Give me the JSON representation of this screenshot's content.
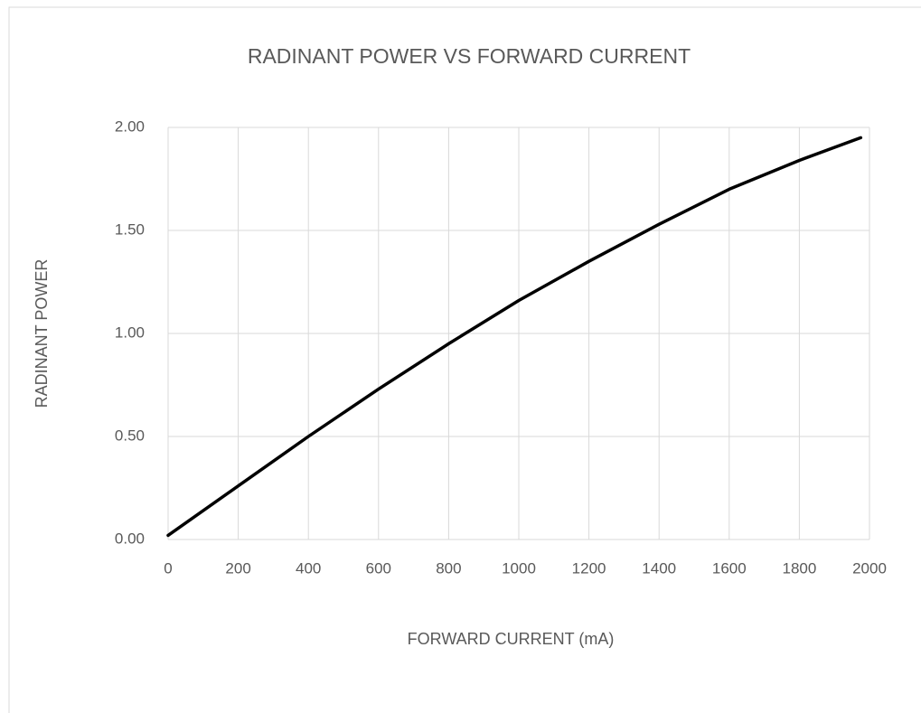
{
  "chart_data": {
    "type": "line",
    "title": "RADINANT POWER VS FORWARD CURRENT",
    "x_label": "FORWARD CURRENT (mA)",
    "y_label": "RADINANT POWER",
    "x": [
      0,
      200,
      400,
      600,
      800,
      1000,
      1200,
      1400,
      1600,
      1800,
      1975
    ],
    "values": [
      0.02,
      0.26,
      0.5,
      0.73,
      0.95,
      1.16,
      1.35,
      1.53,
      1.7,
      1.84,
      1.95
    ],
    "color": "#000000",
    "xlim": [
      0,
      2000
    ],
    "xticks": [
      0,
      200,
      400,
      600,
      800,
      1000,
      1200,
      1400,
      1600,
      1800,
      2000
    ],
    "ylim": [
      0,
      2
    ],
    "yticks": [
      {
        "value": 0,
        "label": "0.00"
      },
      {
        "value": 0.5,
        "label": "0.50"
      },
      {
        "value": 1,
        "label": "1.00"
      },
      {
        "value": 1.5,
        "label": "1.50"
      },
      {
        "value": 2,
        "label": "2.00"
      }
    ],
    "grid": true
  }
}
